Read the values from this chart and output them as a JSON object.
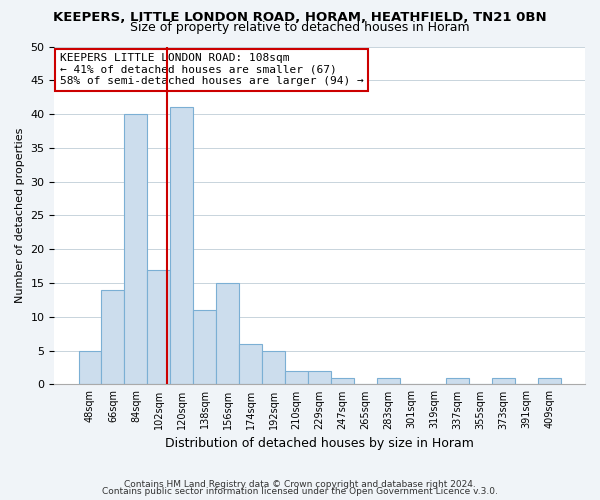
{
  "title": "KEEPERS, LITTLE LONDON ROAD, HORAM, HEATHFIELD, TN21 0BN",
  "subtitle": "Size of property relative to detached houses in Horam",
  "xlabel": "Distribution of detached houses by size in Horam",
  "ylabel": "Number of detached properties",
  "bin_labels": [
    "48sqm",
    "66sqm",
    "84sqm",
    "102sqm",
    "120sqm",
    "138sqm",
    "156sqm",
    "174sqm",
    "192sqm",
    "210sqm",
    "229sqm",
    "247sqm",
    "265sqm",
    "283sqm",
    "301sqm",
    "319sqm",
    "337sqm",
    "355sqm",
    "373sqm",
    "391sqm",
    "409sqm"
  ],
  "bar_values": [
    5,
    14,
    40,
    17,
    41,
    11,
    15,
    6,
    5,
    2,
    2,
    1,
    0,
    1,
    0,
    0,
    1,
    0,
    1,
    0,
    1
  ],
  "bar_color": "#ccdded",
  "bar_edge_color": "#7bafd4",
  "annotation_title": "KEEPERS LITTLE LONDON ROAD: 108sqm",
  "annotation_line1": "← 41% of detached houses are smaller (67)",
  "annotation_line2": "58% of semi-detached houses are larger (94) →",
  "annotation_box_color": "#ffffff",
  "annotation_box_edge": "#cc0000",
  "subject_line_color": "#cc0000",
  "ylim": [
    0,
    50
  ],
  "yticks": [
    0,
    5,
    10,
    15,
    20,
    25,
    30,
    35,
    40,
    45,
    50
  ],
  "footer1": "Contains HM Land Registry data © Crown copyright and database right 2024.",
  "footer2": "Contains public sector information licensed under the Open Government Licence v.3.0.",
  "bg_color": "#f0f4f8",
  "plot_bg_color": "#ffffff",
  "grid_color": "#c8d4dc"
}
